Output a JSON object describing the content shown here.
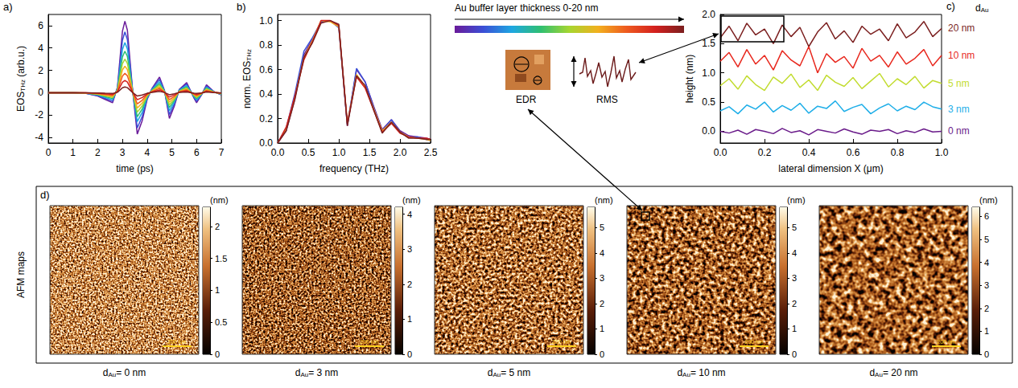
{
  "chart_data": [
    {
      "type": "line",
      "panel_label": "a)",
      "xlabel": "time (ps)",
      "ylabel": {
        "base": "EOS",
        "sub": "THz",
        "after": " (arb.u.)"
      },
      "xlim": [
        0,
        7
      ],
      "xticks": [
        0,
        1,
        2,
        3,
        4,
        5,
        6,
        7
      ],
      "ylim": [
        -4.5,
        7
      ],
      "yticks": [
        -4,
        -2,
        0,
        2,
        4,
        6
      ],
      "x": [
        0,
        1,
        1.5,
        2,
        2.3,
        2.6,
        2.8,
        3.0,
        3.1,
        3.2,
        3.4,
        3.6,
        3.8,
        4.0,
        4.2,
        4.5,
        4.7,
        4.9,
        5.1,
        5.3,
        5.6,
        5.9,
        6.0,
        6.2,
        6.4,
        6.7,
        7.0
      ],
      "series": [
        {
          "color": "#6a1b9a",
          "values": [
            0,
            0,
            -0.05,
            -0.3,
            -0.6,
            -0.9,
            0.5,
            5.5,
            6.4,
            5.6,
            0.5,
            -3.7,
            -2.5,
            -0.6,
            0.4,
            1.4,
            0.2,
            -2.3,
            -1.2,
            0.3,
            0.9,
            -0.5,
            -0.9,
            -0.2,
            0.7,
            0.1,
            -0.2
          ]
        },
        {
          "color": "#3b4fd6",
          "values": [
            0,
            0,
            -0.04,
            -0.26,
            -0.51,
            -0.77,
            0.43,
            4.68,
            5.44,
            4.76,
            0.43,
            -3.15,
            -2.13,
            -0.51,
            0.34,
            1.19,
            0.17,
            -1.96,
            -1.02,
            0.26,
            0.77,
            -0.43,
            -0.77,
            -0.17,
            0.6,
            0.09,
            -0.17
          ]
        },
        {
          "color": "#1ea7e1",
          "values": [
            0,
            0,
            -0.04,
            -0.21,
            -0.42,
            -0.63,
            0.35,
            3.85,
            4.48,
            3.92,
            0.35,
            -2.59,
            -1.75,
            -0.42,
            0.28,
            0.98,
            0.14,
            -1.61,
            -0.84,
            0.21,
            0.63,
            -0.35,
            -0.63,
            -0.14,
            0.49,
            0.07,
            -0.14
          ]
        },
        {
          "color": "#2fbf71",
          "values": [
            0,
            0,
            -0.03,
            -0.17,
            -0.35,
            -0.52,
            0.29,
            3.19,
            3.71,
            3.25,
            0.29,
            -2.15,
            -1.45,
            -0.35,
            0.23,
            0.81,
            0.12,
            -1.33,
            -0.7,
            0.17,
            0.52,
            -0.29,
            -0.52,
            -0.12,
            0.41,
            0.06,
            -0.12
          ]
        },
        {
          "color": "#a6d630",
          "values": [
            0,
            0,
            -0.02,
            -0.14,
            -0.28,
            -0.42,
            0.24,
            2.59,
            3.01,
            2.63,
            0.24,
            -1.74,
            -1.18,
            -0.28,
            0.19,
            0.66,
            0.09,
            -1.08,
            -0.56,
            0.14,
            0.42,
            -0.24,
            -0.42,
            -0.09,
            0.33,
            0.05,
            -0.09
          ]
        },
        {
          "color": "#f2b01e",
          "values": [
            0,
            0,
            -0.02,
            -0.11,
            -0.22,
            -0.33,
            0.19,
            2.04,
            2.37,
            2.07,
            0.19,
            -1.37,
            -0.93,
            -0.22,
            0.15,
            0.52,
            0.07,
            -0.85,
            -0.44,
            0.11,
            0.33,
            -0.19,
            -0.33,
            -0.07,
            0.26,
            0.04,
            -0.07
          ]
        },
        {
          "color": "#ee5a1f",
          "values": [
            0,
            0,
            -0.01,
            -0.08,
            -0.16,
            -0.24,
            0.14,
            1.49,
            1.73,
            1.51,
            0.14,
            -1.0,
            -0.68,
            -0.16,
            0.11,
            0.38,
            0.05,
            -0.62,
            -0.32,
            0.08,
            0.24,
            -0.14,
            -0.24,
            -0.05,
            0.19,
            0.03,
            -0.05
          ]
        },
        {
          "color": "#d3201e",
          "values": [
            0,
            0,
            -0.01,
            -0.05,
            -0.1,
            -0.15,
            0.09,
            0.94,
            1.09,
            0.95,
            0.09,
            -0.63,
            -0.43,
            -0.1,
            0.07,
            0.24,
            0.03,
            -0.39,
            -0.2,
            0.05,
            0.15,
            -0.09,
            -0.15,
            -0.03,
            0.12,
            0.02,
            -0.03
          ]
        },
        {
          "color": "#7b1f1f",
          "values": [
            0,
            0,
            0,
            -0.02,
            -0.05,
            -0.07,
            0.04,
            0.44,
            0.51,
            0.45,
            0.04,
            -0.3,
            -0.2,
            -0.05,
            0.03,
            0.11,
            0.02,
            -0.18,
            -0.1,
            0.02,
            0.07,
            -0.04,
            -0.07,
            -0.02,
            0.06,
            0.01,
            -0.02
          ]
        }
      ]
    },
    {
      "type": "line",
      "panel_label": "b)",
      "xlabel": "frequency (THz)",
      "ylabel": {
        "base": "norm. EOS",
        "sub": "THz"
      },
      "xlim": [
        0,
        2.5
      ],
      "xticks": [
        {
          "value": 0,
          "label": "0.0"
        },
        0.5,
        {
          "value": 1,
          "label": "1.0"
        },
        1.5,
        {
          "value": 2,
          "label": "2.0"
        },
        2.5
      ],
      "ylim": [
        0,
        1.05
      ],
      "yticks": [
        {
          "value": 0,
          "label": "0.0"
        },
        0.2,
        0.4,
        0.6,
        0.8,
        {
          "value": 1,
          "label": "1.0"
        }
      ],
      "x": [
        0,
        0.14,
        0.28,
        0.43,
        0.57,
        0.71,
        0.86,
        1.0,
        1.14,
        1.29,
        1.43,
        1.57,
        1.71,
        1.86,
        2.0,
        2.14,
        2.29,
        2.43,
        2.5
      ],
      "series": [
        {
          "color": "#6a1b9a",
          "values": [
            0,
            0.1,
            0.36,
            0.72,
            0.85,
            0.99,
            1.0,
            0.95,
            0.14,
            0.6,
            0.5,
            0.3,
            0.11,
            0.19,
            0.1,
            0.06,
            0.05,
            0.04,
            0.03
          ]
        },
        {
          "color": "#3b4fd6",
          "values": [
            0,
            0.12,
            0.4,
            0.75,
            0.86,
            0.99,
            1.0,
            0.94,
            0.15,
            0.61,
            0.5,
            0.29,
            0.1,
            0.19,
            0.09,
            0.05,
            0.05,
            0.03,
            0.02
          ]
        },
        {
          "color": "#f2b01e",
          "values": [
            0,
            0.11,
            0.37,
            0.7,
            0.84,
            1.0,
            0.99,
            0.95,
            0.16,
            0.56,
            0.46,
            0.28,
            0.1,
            0.17,
            0.09,
            0.05,
            0.04,
            0.03,
            0.02
          ]
        },
        {
          "color": "#d3201e",
          "values": [
            0,
            0.13,
            0.38,
            0.68,
            0.83,
            1.0,
            1.0,
            0.96,
            0.16,
            0.54,
            0.45,
            0.27,
            0.09,
            0.16,
            0.08,
            0.05,
            0.04,
            0.04,
            0.03
          ]
        },
        {
          "color": "#7b1f1f",
          "values": [
            0,
            0.1,
            0.35,
            0.7,
            0.82,
            0.98,
            1.0,
            0.97,
            0.14,
            0.55,
            0.47,
            0.27,
            0.08,
            0.17,
            0.09,
            0.04,
            0.04,
            0.03,
            0.03
          ]
        }
      ]
    },
    {
      "type": "line",
      "panel_label": "c)",
      "xlabel": "lateral dimension X (μm)",
      "ylabel": "height (nm)",
      "label_header": {
        "base": "d",
        "sub": "Au"
      },
      "xlim": [
        0,
        1
      ],
      "xticks": [
        {
          "value": 0,
          "label": "0.0"
        },
        0.2,
        0.4,
        0.6,
        0.8,
        {
          "value": 1,
          "label": "1.0"
        }
      ],
      "ylim": [
        -0.2,
        2.0
      ],
      "yticks": [
        {
          "value": 0,
          "label": "0.0"
        },
        0.5,
        {
          "value": 1,
          "label": "1.0"
        },
        1.5,
        {
          "value": 2,
          "label": "2.0"
        }
      ],
      "x": [
        0,
        0.04,
        0.08,
        0.12,
        0.16,
        0.2,
        0.24,
        0.28,
        0.32,
        0.36,
        0.4,
        0.44,
        0.48,
        0.52,
        0.56,
        0.6,
        0.64,
        0.68,
        0.72,
        0.76,
        0.8,
        0.84,
        0.88,
        0.92,
        0.96,
        1.0
      ],
      "series": [
        {
          "name": "20 nm",
          "color": "#7b1f1f",
          "values": [
            1.6,
            1.8,
            1.55,
            1.85,
            1.65,
            1.75,
            1.5,
            1.82,
            1.62,
            1.78,
            1.45,
            1.7,
            1.86,
            1.58,
            1.72,
            1.52,
            1.8,
            1.66,
            1.75,
            1.55,
            1.84,
            1.6,
            1.7,
            1.88,
            1.62,
            1.76
          ]
        },
        {
          "name": "10 nm",
          "color": "#e8281e",
          "values": [
            1.2,
            1.35,
            1.1,
            1.4,
            1.15,
            1.3,
            1.05,
            1.38,
            1.22,
            1.12,
            1.45,
            1.0,
            1.33,
            1.18,
            1.28,
            1.08,
            1.42,
            1.2,
            1.3,
            1.1,
            1.36,
            1.15,
            1.25,
            1.4,
            1.12,
            1.3
          ]
        },
        {
          "name": "5 nm",
          "color": "#c2dc30",
          "values": [
            0.78,
            0.9,
            0.72,
            0.95,
            0.8,
            0.7,
            0.93,
            0.82,
            0.98,
            0.75,
            0.88,
            0.7,
            0.96,
            0.84,
            0.77,
            0.92,
            0.73,
            0.86,
            0.99,
            0.76,
            0.9,
            0.8,
            0.94,
            0.74,
            0.87,
            0.82
          ]
        },
        {
          "name": "3 nm",
          "color": "#1eaee8",
          "values": [
            0.35,
            0.42,
            0.3,
            0.45,
            0.38,
            0.5,
            0.33,
            0.44,
            0.36,
            0.48,
            0.31,
            0.43,
            0.39,
            0.52,
            0.34,
            0.41,
            0.46,
            0.3,
            0.4,
            0.47,
            0.35,
            0.43,
            0.37,
            0.5,
            0.42,
            0.38
          ]
        },
        {
          "name": "0 nm",
          "color": "#6a1b8a",
          "values": [
            0.0,
            -0.03,
            0.02,
            -0.05,
            0.03,
            0.0,
            -0.04,
            0.05,
            -0.02,
            0.01,
            -0.06,
            0.03,
            0.0,
            -0.03,
            0.04,
            -0.01,
            -0.05,
            0.02,
            0.0,
            0.03,
            -0.04,
            0.01,
            -0.02,
            0.04,
            -0.01,
            0.0
          ]
        }
      ]
    },
    {
      "type": "image",
      "panel_label": "d)",
      "ylabel": "AFM maps",
      "maps": [
        {
          "caption": {
            "base": "d",
            "sub": "Au",
            "after": "= 0 nm"
          },
          "scale_bar": "200 nm",
          "colorbar": {
            "unit": "(nm)",
            "range": [
              0,
              2.3
            ],
            "ticks": [
              0,
              0.5,
              1,
              1.5,
              2
            ]
          }
        },
        {
          "caption": {
            "base": "d",
            "sub": "Au",
            "after": "= 3 nm"
          },
          "scale_bar": "200 nm",
          "colorbar": {
            "unit": "(nm)",
            "range": [
              0,
              4.2
            ],
            "ticks": [
              0,
              1,
              2,
              3,
              4
            ]
          }
        },
        {
          "caption": {
            "base": "d",
            "sub": "Au",
            "after": "= 5 nm"
          },
          "scale_bar": "200 nm",
          "colorbar": {
            "unit": "(nm)",
            "range": [
              0,
              5.8
            ],
            "ticks": [
              0,
              1,
              2,
              3,
              4,
              5
            ]
          }
        },
        {
          "caption": {
            "base": "d",
            "sub": "Au",
            "after": "= 10 nm"
          },
          "scale_bar": "200 nm",
          "colorbar": {
            "unit": "(nm)",
            "range": [
              0,
              5.8
            ],
            "ticks": [
              0,
              1,
              2,
              3,
              4,
              5
            ]
          }
        },
        {
          "caption": {
            "base": "d",
            "sub": "Au",
            "after": "= 20 nm"
          },
          "scale_bar": "200 nm",
          "colorbar": {
            "unit": "(nm)",
            "range": [
              0,
              6.4
            ],
            "ticks": [
              0,
              1,
              2,
              3,
              4,
              5,
              6
            ]
          }
        }
      ]
    }
  ],
  "annotations": {
    "gradient_label": "Au buffer layer thickness 0-20 nm",
    "inset_labels": [
      "EDR",
      "RMS"
    ]
  }
}
